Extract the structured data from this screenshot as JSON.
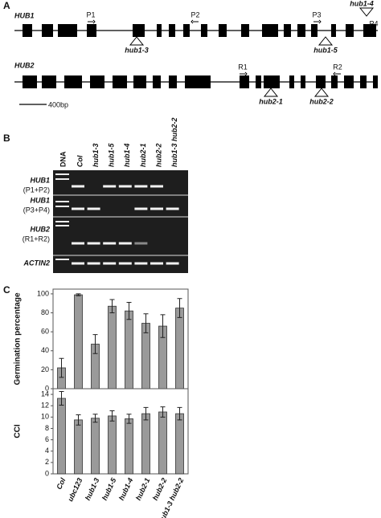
{
  "panel_labels": [
    "A",
    "B",
    "C"
  ],
  "gene_a": {
    "name": "HUB1",
    "primers": [
      "P1",
      "P2",
      "P3",
      "P4"
    ],
    "alleles": [
      "hub1-3",
      "hub1-5",
      "hub1-4"
    ]
  },
  "gene_b": {
    "name": "HUB2",
    "primers": [
      "R1",
      "R2"
    ],
    "alleles": [
      "hub2-1",
      "hub2-2"
    ]
  },
  "scale_bar": "400bp",
  "gel": {
    "lanes": [
      "DNA",
      "Col",
      "hub1-3",
      "hub1-5",
      "hub1-4",
      "hub2-1",
      "hub2-2",
      "hub1-3 hub2-2"
    ],
    "rows": [
      {
        "gene": "HUB1",
        "primers": "(P1+P2)"
      },
      {
        "gene": "HUB1",
        "primers": "(P3+P4)"
      },
      {
        "gene": "HUB2",
        "primers": "(R1+R2)"
      },
      {
        "gene": "ACTIN2"
      }
    ]
  },
  "chart_data": [
    {
      "type": "bar",
      "ylabel": "Germination percentage",
      "color": "#9a9a9a",
      "values": [
        22,
        99,
        47,
        87,
        82,
        69,
        66,
        85
      ],
      "errors": [
        10,
        1,
        10,
        7,
        9,
        10,
        12,
        10
      ],
      "ylim": [
        0,
        105
      ],
      "yticks": [
        0,
        20,
        40,
        60,
        80,
        100
      ]
    },
    {
      "type": "bar",
      "ylabel": "CCI",
      "color": "#9a9a9a",
      "categories": [
        "Col",
        "ubc123",
        "hub1-3",
        "hub1-5",
        "hub1-4",
        "hub2-1",
        "hub2-2",
        "hub1-3 hub2-2"
      ],
      "values": [
        13.3,
        9.5,
        9.8,
        10.2,
        9.7,
        10.6,
        10.9,
        10.6
      ],
      "errors": [
        1.2,
        0.9,
        0.7,
        0.9,
        0.8,
        1.1,
        0.9,
        1.1
      ],
      "ylim": [
        0,
        15
      ],
      "yticks": [
        0,
        2,
        4,
        6,
        8,
        10,
        12,
        14
      ]
    }
  ]
}
